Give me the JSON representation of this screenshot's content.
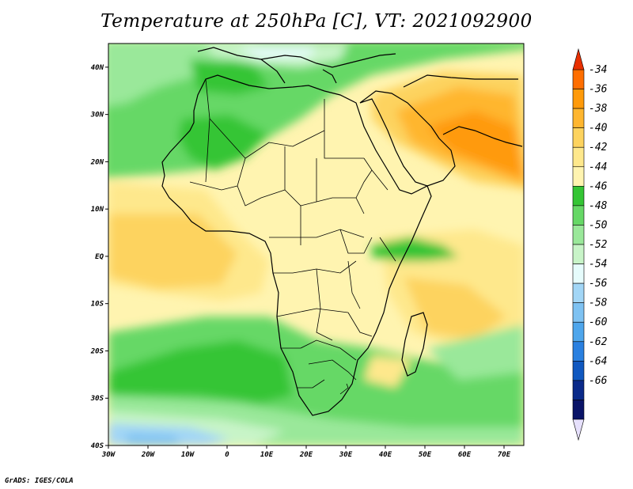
{
  "title": "Temperature at 250hPa [C], VT: 2021092900",
  "footer": "GrADS: IGES/COLA",
  "map": {
    "lon_range": [
      -30,
      75
    ],
    "lat_range": [
      -40,
      45
    ],
    "lon_ticks": [
      "30W",
      "20W",
      "10W",
      "0",
      "10E",
      "20E",
      "30E",
      "40E",
      "50E",
      "60E",
      "70E"
    ],
    "lon_tick_values": [
      -30,
      -20,
      -10,
      0,
      10,
      20,
      30,
      40,
      50,
      60,
      70
    ],
    "lat_ticks": [
      "40N",
      "30N",
      "20N",
      "10N",
      "EQ",
      "10S",
      "20S",
      "30S",
      "40S"
    ],
    "lat_tick_values": [
      40,
      30,
      20,
      10,
      0,
      -10,
      -20,
      -30,
      -40
    ]
  },
  "colorbar": {
    "labels": [
      "-34",
      "-36",
      "-38",
      "-40",
      "-42",
      "-44",
      "-46",
      "-48",
      "-50",
      "-52",
      "-54",
      "-56",
      "-58",
      "-60",
      "-62",
      "-64",
      "-66"
    ],
    "colors": [
      "#ff6e00",
      "#ff9a0a",
      "#ffb62f",
      "#fdd35e",
      "#fee88c",
      "#fff4b0",
      "#34c534",
      "#66d866",
      "#9ae89a",
      "#c8f4c8",
      "#e6fcfc",
      "#a2d6f6",
      "#7ec2f2",
      "#4ea6ec",
      "#2a80e0",
      "#1058c0",
      "#0a2a8a",
      "#0a1468"
    ],
    "top_triangle_color": "#e83000",
    "bottom_triangle_color": "#e6e0fc"
  }
}
